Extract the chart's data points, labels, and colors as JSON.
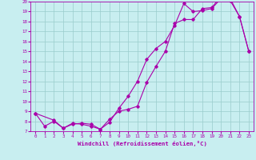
{
  "xlabel": "Windchill (Refroidissement éolien,°C)",
  "ylabel": "",
  "bg_color": "#c8eef0",
  "line_color": "#aa00aa",
  "grid_color": "#99cccc",
  "xlim": [
    -0.5,
    23.5
  ],
  "ylim": [
    7,
    20
  ],
  "xticks": [
    0,
    1,
    2,
    3,
    4,
    5,
    6,
    7,
    8,
    9,
    10,
    11,
    12,
    13,
    14,
    15,
    16,
    17,
    18,
    19,
    20,
    21,
    22,
    23
  ],
  "yticks": [
    7,
    8,
    9,
    10,
    11,
    12,
    13,
    14,
    15,
    16,
    17,
    18,
    19,
    20
  ],
  "line1_x": [
    0,
    1,
    2,
    3,
    4,
    5,
    6,
    7,
    8,
    9,
    10,
    11,
    12,
    13,
    14,
    15,
    16,
    17,
    18,
    19,
    20,
    21,
    22,
    23
  ],
  "line1_y": [
    8.8,
    7.5,
    8.0,
    7.3,
    7.8,
    7.7,
    7.5,
    7.2,
    7.9,
    9.3,
    10.5,
    12.0,
    14.2,
    15.3,
    16.0,
    17.6,
    19.8,
    19.0,
    19.1,
    19.3,
    20.3,
    20.1,
    18.5,
    15.0
  ],
  "line2_x": [
    0,
    2,
    3,
    4,
    5,
    6,
    7,
    8,
    9,
    10,
    11,
    12,
    13,
    14,
    15,
    16,
    17,
    18,
    19,
    20,
    21,
    22,
    23
  ],
  "line2_y": [
    8.8,
    8.1,
    7.3,
    7.7,
    7.8,
    7.7,
    7.2,
    8.2,
    9.0,
    9.2,
    9.5,
    11.9,
    13.5,
    15.0,
    17.8,
    18.2,
    18.2,
    19.3,
    19.4,
    20.5,
    20.3,
    18.5,
    15.0
  ],
  "marker": "D",
  "marker_size": 1.8,
  "line_width": 0.8,
  "tick_fontsize": 4.2,
  "label_fontsize": 5.2,
  "title_fontsize": 5.5
}
